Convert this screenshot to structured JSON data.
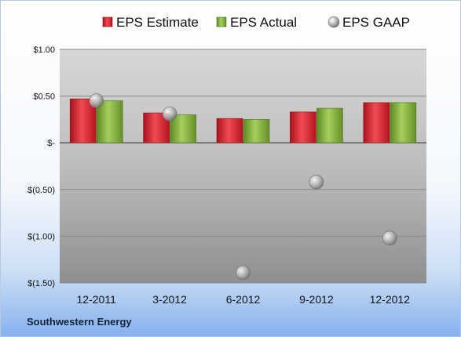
{
  "company": "Southwestern Energy",
  "chart_data": {
    "type": "bar",
    "categories": [
      "12-2011",
      "3-2012",
      "6-2012",
      "9-2012",
      "12-2012"
    ],
    "series": [
      {
        "name": "EPS Estimate",
        "kind": "bar",
        "color": "#d9232f",
        "values": [
          0.47,
          0.32,
          0.26,
          0.33,
          0.43
        ]
      },
      {
        "name": "EPS Actual",
        "kind": "bar",
        "color": "#7fad3a",
        "values": [
          0.45,
          0.3,
          0.25,
          0.37,
          0.43
        ]
      },
      {
        "name": "EPS GAAP",
        "kind": "point",
        "color": "#a6a6a6",
        "values": [
          0.45,
          0.31,
          -1.39,
          -0.42,
          -1.02
        ]
      }
    ],
    "y_ticks": [
      {
        "value": 1.0,
        "label": "$1.00"
      },
      {
        "value": 0.5,
        "label": "$0.50"
      },
      {
        "value": 0,
        "label": "$-"
      },
      {
        "value": -0.5,
        "label": "$(0.50)"
      },
      {
        "value": -1.0,
        "label": "$(1.00)"
      },
      {
        "value": -1.5,
        "label": "$(1.50)"
      }
    ],
    "ylim": [
      -1.5,
      1.0
    ],
    "grid": true,
    "legend": "top"
  }
}
